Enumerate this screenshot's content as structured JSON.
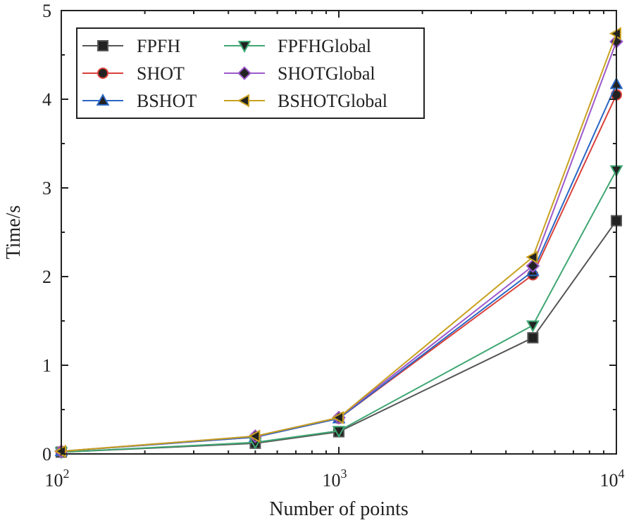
{
  "chart_data": {
    "type": "line",
    "x_scale": "log",
    "xlabel": "Number of points",
    "ylabel": "Time/s",
    "xlim": [
      100,
      10000
    ],
    "ylim": [
      0,
      5
    ],
    "x": [
      100,
      500,
      1000,
      5000,
      10000
    ],
    "y_ticks": [
      "0",
      "1",
      "2",
      "3",
      "4",
      "5"
    ],
    "x_ticks": [
      {
        "base": "10",
        "exp": "2"
      },
      {
        "base": "10",
        "exp": "3"
      },
      {
        "base": "10",
        "exp": "4"
      }
    ],
    "legend_position": "top-left",
    "series": [
      {
        "name": "FPFH",
        "color": "#555555",
        "marker": "square",
        "values": [
          0.02,
          0.12,
          0.25,
          1.31,
          2.63
        ]
      },
      {
        "name": "SHOT",
        "color": "#d9413a",
        "marker": "circle",
        "values": [
          0.03,
          0.19,
          0.4,
          2.02,
          4.05
        ]
      },
      {
        "name": "BSHOT",
        "color": "#2a66c4",
        "marker": "triangle-up",
        "values": [
          0.03,
          0.19,
          0.4,
          2.06,
          4.17
        ]
      },
      {
        "name": "FPFHGlobal",
        "color": "#3fa772",
        "marker": "triangle-down",
        "values": [
          0.02,
          0.13,
          0.26,
          1.45,
          3.2
        ]
      },
      {
        "name": "SHOTGlobal",
        "color": "#9b59c9",
        "marker": "diamond",
        "values": [
          0.03,
          0.2,
          0.41,
          2.12,
          4.65
        ]
      },
      {
        "name": "BSHOTGlobal",
        "color": "#c8a11e",
        "marker": "triangle-left",
        "values": [
          0.03,
          0.2,
          0.41,
          2.22,
          4.74
        ]
      }
    ]
  }
}
